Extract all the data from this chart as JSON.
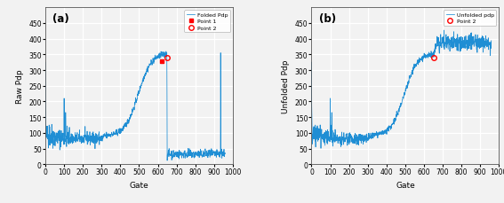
{
  "title_a": "(a)",
  "title_b": "(b)",
  "ylabel_a": "Raw Pdp",
  "ylabel_b": "Unfolded Pdp",
  "xlabel": "Gate",
  "xlim": [
    0,
    1000
  ],
  "ylim": [
    0,
    500
  ],
  "yticks": [
    0,
    50,
    100,
    150,
    200,
    250,
    300,
    350,
    400,
    450
  ],
  "xticks": [
    0,
    100,
    200,
    300,
    400,
    500,
    600,
    700,
    800,
    900,
    1000
  ],
  "line_color": "#1f8ed4",
  "point1_x": 622,
  "point1_y": 328,
  "point2_x": 651,
  "point2_y": 340,
  "legend_a": [
    "Folded Pdp",
    "Point 1",
    "Point 2"
  ],
  "legend_b": [
    "Unfolded pdp",
    "Point 2"
  ],
  "background_color": "#f2f2f2",
  "grid_color": "white",
  "seed": 42
}
